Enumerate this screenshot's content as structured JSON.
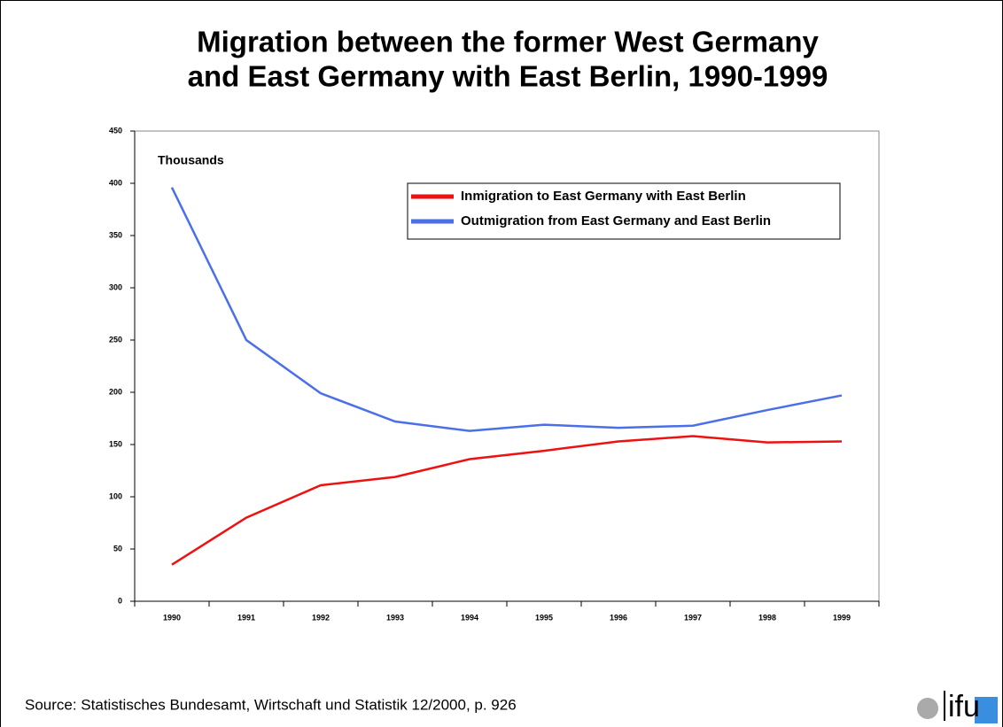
{
  "chart_data": {
    "type": "line",
    "title": [
      "Migration between the former West Germany",
      "and East Germany with East Berlin, 1990-1999"
    ],
    "y_label": "Thousands",
    "categories": [
      "1990",
      "1991",
      "1992",
      "1993",
      "1994",
      "1995",
      "1996",
      "1997",
      "1998",
      "1999"
    ],
    "series": [
      {
        "name": "Inmigration to East Germany with East Berlin",
        "color": "#ee1111",
        "values": [
          35,
          80,
          111,
          119,
          136,
          144,
          153,
          158,
          152,
          153
        ]
      },
      {
        "name": "Outmigration from East Germany and East Berlin",
        "color": "#4a6fe8",
        "values": [
          396,
          250,
          199,
          172,
          163,
          169,
          166,
          168,
          183,
          197
        ]
      }
    ],
    "ylim": [
      0,
      450
    ],
    "yticks": [
      0,
      50,
      100,
      150,
      200,
      250,
      300,
      350,
      400,
      450
    ],
    "grid": false,
    "legend": "upper right",
    "source": "Source: Statistisches Bundesamt, Wirtschaft und Statistik 12/2000, p. 926",
    "logo": "ifu"
  }
}
